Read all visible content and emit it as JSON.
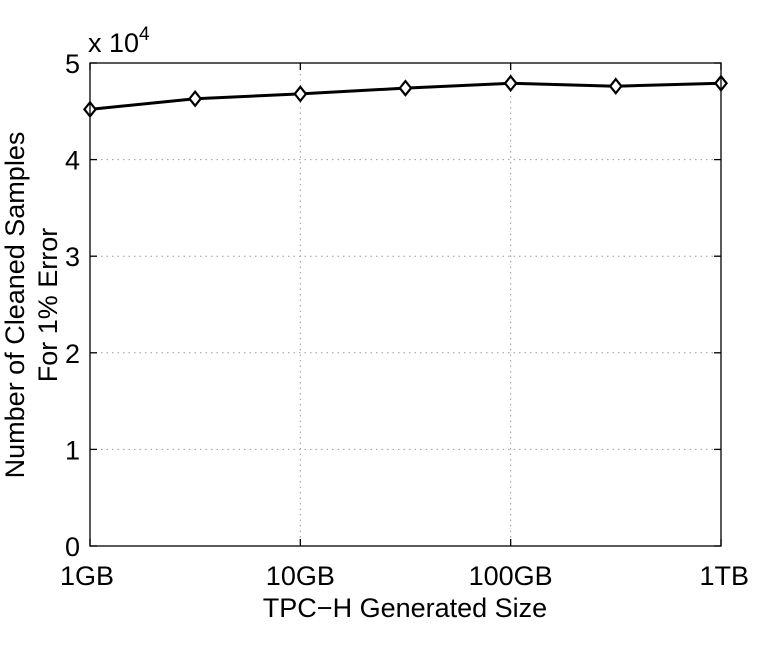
{
  "chart_data": {
    "type": "line",
    "xscale": "log",
    "x_ticks": [
      {
        "value": 1,
        "label": "1GB"
      },
      {
        "value": 10,
        "label": "10GB"
      },
      {
        "value": 100,
        "label": "100GB"
      },
      {
        "value": 1000,
        "label": "1TB"
      }
    ],
    "y_ticks": [
      {
        "value": 0,
        "label": "0"
      },
      {
        "value": 1,
        "label": "1"
      },
      {
        "value": 2,
        "label": "2"
      },
      {
        "value": 3,
        "label": "3"
      },
      {
        "value": 4,
        "label": "4"
      },
      {
        "value": 5,
        "label": "5"
      }
    ],
    "xlim": [
      1,
      1000
    ],
    "ylim": [
      0,
      5
    ],
    "y_exponent_label": "x 10",
    "y_exponent_power": "4",
    "xlabel": "TPC−H Generated Size",
    "ylabel_line1": "Number of Cleaned Samples",
    "ylabel_line2": "For 1% Error",
    "grid": true,
    "marker": "diamond",
    "color": "#000000",
    "series": [
      {
        "x": [
          1,
          3.16,
          10,
          31.6,
          100,
          316,
          1000
        ],
        "values": [
          4.52,
          4.63,
          4.68,
          4.74,
          4.79,
          4.76,
          4.79
        ]
      }
    ]
  }
}
